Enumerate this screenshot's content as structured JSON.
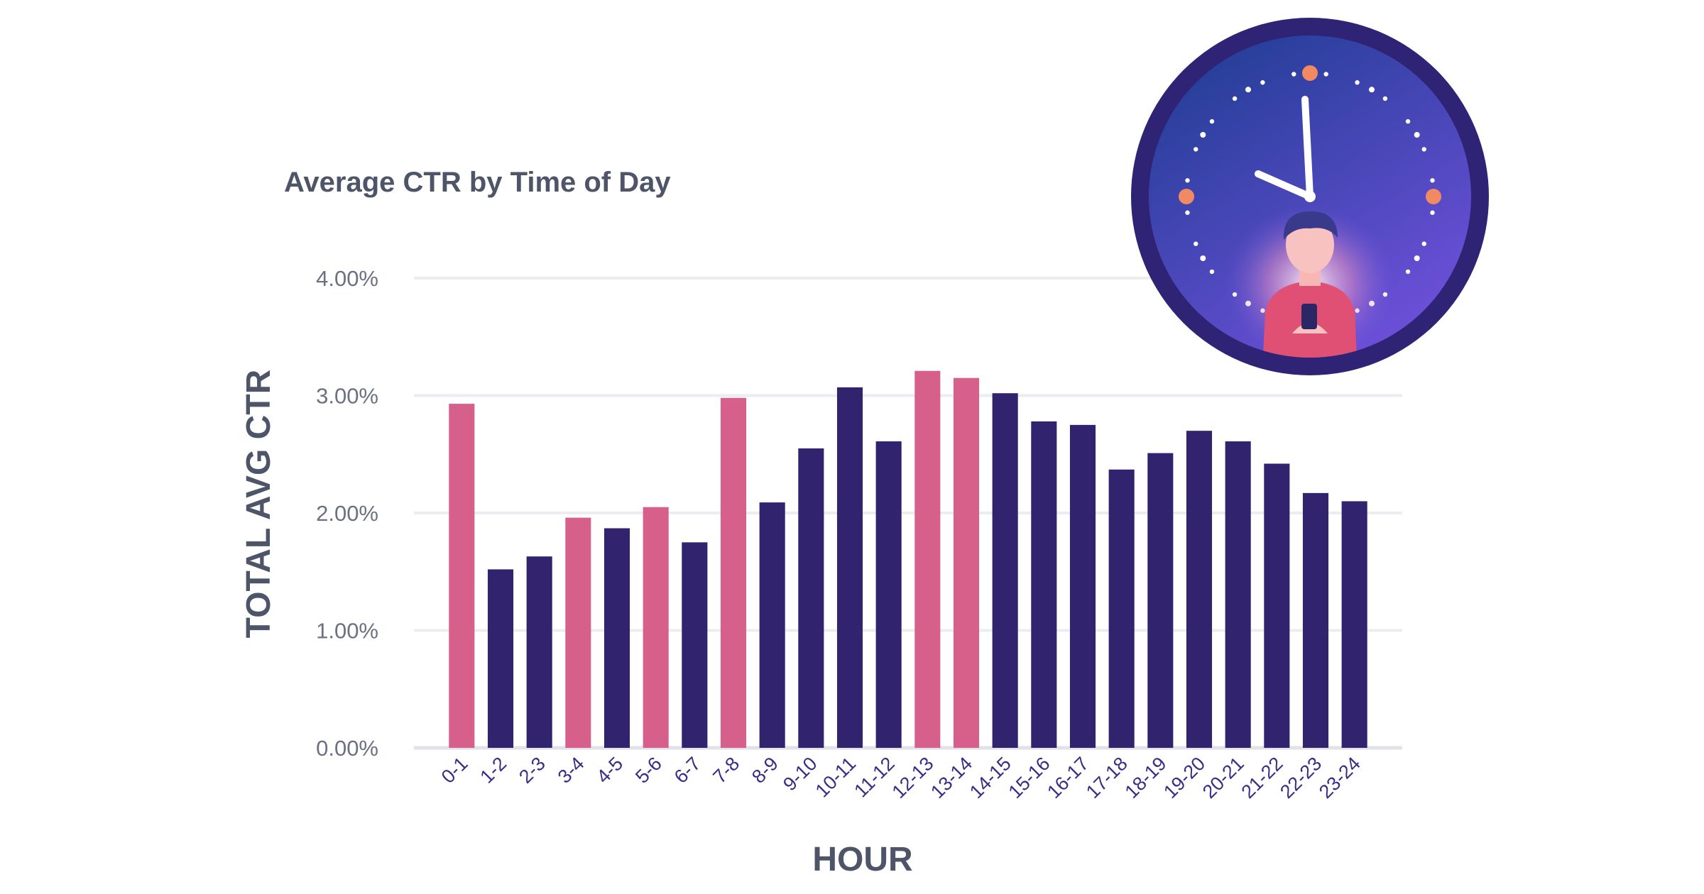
{
  "chart_data": {
    "type": "bar",
    "title": "Average CTR by Time of Day",
    "xlabel": "HOUR",
    "ylabel": "TOTAL AVG CTR",
    "ylim": [
      0,
      4
    ],
    "yticks": [
      "0.00%",
      "1.00%",
      "2.00%",
      "3.00%",
      "4.00%"
    ],
    "grid": true,
    "categories": [
      "0-1",
      "1-2",
      "2-3",
      "3-4",
      "4-5",
      "5-6",
      "6-7",
      "7-8",
      "8-9",
      "9-10",
      "10-11",
      "11-12",
      "12-13",
      "13-14",
      "14-15",
      "15-16",
      "16-17",
      "17-18",
      "18-19",
      "19-20",
      "20-21",
      "21-22",
      "22-23",
      "23-24"
    ],
    "values": [
      2.93,
      1.52,
      1.63,
      1.96,
      1.87,
      2.05,
      1.75,
      2.98,
      2.09,
      2.55,
      3.07,
      2.61,
      3.21,
      3.15,
      3.02,
      2.78,
      2.75,
      2.37,
      2.51,
      2.7,
      2.61,
      2.42,
      2.17,
      2.1
    ],
    "highlighted": [
      "0-1",
      "3-4",
      "5-6",
      "7-8",
      "12-13",
      "13-14"
    ],
    "colors": {
      "highlight": "#d6608a",
      "default": "#32236f",
      "grid": "#ececf1",
      "tick_text": "#6b7083",
      "category_text": "#3a2d86",
      "title_text": "#4e5568"
    }
  },
  "illustration": {
    "icon": "clock-person-phone-icon",
    "colors": {
      "ring": "#2e2374",
      "face_top": "#1e3a8f",
      "face_bottom": "#5c4bd0",
      "hour_markers": "#f18a63",
      "hands": "#ffffff",
      "shirt": "#e04f74"
    }
  }
}
